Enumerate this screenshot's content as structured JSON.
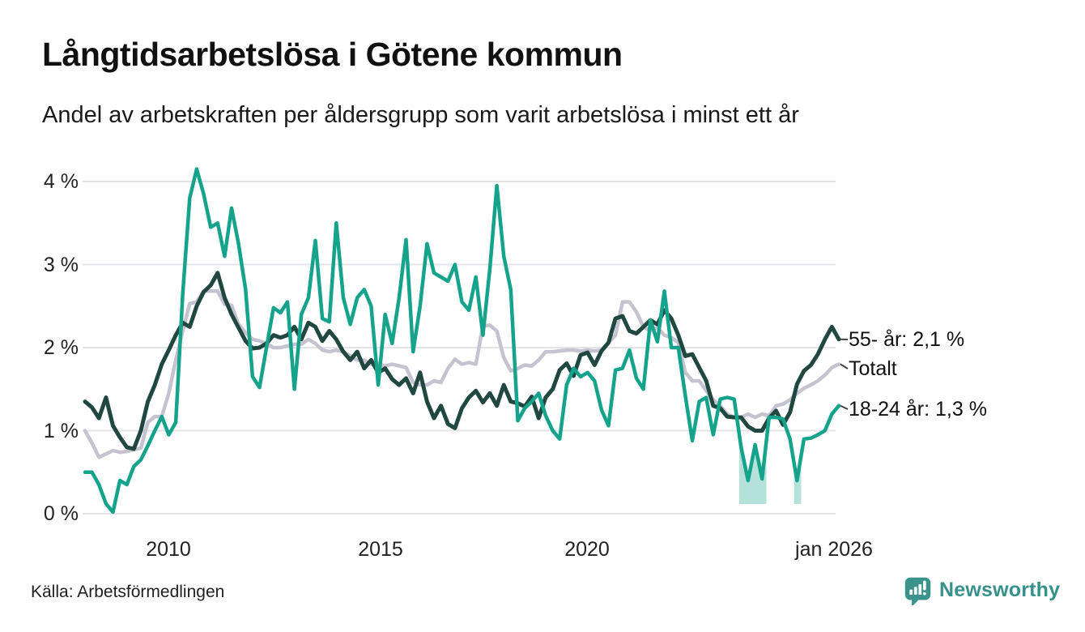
{
  "header": {
    "title": "Långtidsarbetslösa i Götene kommun",
    "subtitle": "Andel av arbetskraften per åldersgrupp som varit arbetslösa i minst ett år"
  },
  "footer": {
    "source": "Källa: Arbetsförmedlingen",
    "brand": "Newsworthy"
  },
  "colors": {
    "teal": "#16a38c",
    "dark": "#214741",
    "gray": "#c6c3d0",
    "band": "#16a38c",
    "grid": "#e4e3e7",
    "connector": "#444444",
    "brand_teal": "#3b938c"
  },
  "chart_data": {
    "type": "line",
    "title": "Långtidsarbetslösa i Götene kommun",
    "subtitle": "Andel av arbetskraften per åldersgrupp som varit arbetslösa i minst ett år",
    "x_range": [
      2008,
      2026
    ],
    "x_step_years": 0.16667,
    "ylim": [
      0,
      4.3
    ],
    "grid": true,
    "y_ticks": [
      "4 %",
      "3 %",
      "2 %",
      "1 %",
      "0 %"
    ],
    "y_tick_values": [
      4,
      3,
      2,
      1,
      0
    ],
    "x_ticks": [
      "2010",
      "2015",
      "2020",
      "jan 2026"
    ],
    "x_tick_years": [
      2010,
      2015,
      2020,
      2026
    ],
    "end_labels": [
      {
        "text": "55- år: 2,1 %",
        "value": 2.1
      },
      {
        "text": "Totalt",
        "value": 1.8
      },
      {
        "text": "18-24 år: 1,3 %",
        "value": 1.3
      }
    ],
    "uncertainty_bands": [
      {
        "from": 2023.62,
        "to": 2024.27
      },
      {
        "from": 2024.93,
        "to": 2025.1
      }
    ],
    "series": [
      {
        "name": "Totalt",
        "color": "#c6c3d0",
        "width": 4.5,
        "values": [
          1.0,
          0.85,
          0.68,
          0.72,
          0.76,
          0.74,
          0.75,
          0.77,
          0.79,
          1.1,
          1.17,
          1.17,
          1.45,
          1.85,
          2.2,
          2.53,
          2.55,
          2.68,
          2.68,
          2.68,
          2.52,
          2.51,
          2.28,
          2.18,
          2.1,
          2.08,
          2.05,
          2.0,
          2.0,
          2.02,
          2.04,
          2.04,
          2.1,
          2.05,
          1.97,
          1.95,
          1.97,
          1.95,
          1.9,
          1.85,
          1.85,
          1.8,
          1.8,
          1.78,
          1.8,
          1.78,
          1.76,
          1.58,
          1.55,
          1.55,
          1.6,
          1.58,
          1.75,
          1.86,
          1.8,
          1.82,
          1.8,
          2.26,
          2.27,
          2.2,
          1.88,
          1.72,
          1.75,
          1.79,
          1.78,
          1.85,
          1.95,
          1.95,
          1.96,
          1.97,
          1.97,
          1.96,
          1.97,
          1.96,
          1.97,
          2.06,
          2.15,
          2.55,
          2.55,
          2.43,
          2.25,
          2.2,
          2.24,
          2.15,
          2.12,
          2.06,
          1.7,
          1.6,
          1.6,
          1.48,
          1.37,
          1.3,
          1.2,
          1.16,
          1.16,
          1.2,
          1.16,
          1.2,
          1.18,
          1.3,
          1.32,
          1.37,
          1.45,
          1.51,
          1.55,
          1.6,
          1.67,
          1.76,
          1.8
        ]
      },
      {
        "name": "55- år",
        "color": "#214741",
        "width": 5,
        "values": [
          1.35,
          1.28,
          1.15,
          1.4,
          1.06,
          0.92,
          0.8,
          0.78,
          1.0,
          1.35,
          1.55,
          1.8,
          1.97,
          2.15,
          2.3,
          2.25,
          2.5,
          2.67,
          2.75,
          2.9,
          2.6,
          2.4,
          2.24,
          2.08,
          1.99,
          2.0,
          2.05,
          2.15,
          2.12,
          2.15,
          2.25,
          2.1,
          2.3,
          2.25,
          2.08,
          2.2,
          2.1,
          1.95,
          1.85,
          1.95,
          1.75,
          1.85,
          1.7,
          1.75,
          1.62,
          1.55,
          1.63,
          1.45,
          1.7,
          1.35,
          1.15,
          1.3,
          1.08,
          1.03,
          1.27,
          1.4,
          1.48,
          1.34,
          1.45,
          1.3,
          1.55,
          1.35,
          1.33,
          1.29,
          1.41,
          1.15,
          1.4,
          1.5,
          1.73,
          1.81,
          1.66,
          1.91,
          1.94,
          1.79,
          1.96,
          2.06,
          2.35,
          2.38,
          2.2,
          2.17,
          2.25,
          2.33,
          2.28,
          2.45,
          2.35,
          2.15,
          1.9,
          1.92,
          1.76,
          1.6,
          1.3,
          1.27,
          1.17,
          1.16,
          1.16,
          1.05,
          1.0,
          1.0,
          1.15,
          1.24,
          1.07,
          1.22,
          1.56,
          1.72,
          1.79,
          1.92,
          2.1,
          2.25,
          2.1
        ]
      },
      {
        "name": "18-24 år",
        "color": "#16a38c",
        "width": 4.5,
        "values": [
          0.5,
          0.5,
          0.35,
          0.12,
          0.02,
          0.4,
          0.35,
          0.57,
          0.65,
          0.82,
          1.0,
          1.17,
          0.95,
          1.1,
          2.65,
          3.8,
          4.15,
          3.85,
          3.45,
          3.5,
          3.1,
          3.68,
          3.25,
          2.7,
          1.65,
          1.52,
          2.0,
          2.48,
          2.42,
          2.55,
          1.5,
          2.4,
          2.6,
          3.29,
          2.35,
          2.31,
          3.5,
          2.6,
          2.28,
          2.6,
          2.7,
          2.5,
          1.55,
          2.4,
          2.05,
          2.6,
          3.3,
          1.95,
          2.5,
          3.25,
          2.9,
          2.85,
          2.8,
          3.0,
          2.55,
          2.45,
          2.85,
          2.15,
          2.95,
          3.95,
          3.1,
          2.7,
          1.12,
          1.27,
          1.35,
          1.45,
          1.18,
          1.0,
          0.9,
          1.55,
          1.75,
          1.65,
          1.7,
          1.6,
          1.25,
          1.06,
          1.73,
          1.75,
          1.97,
          1.63,
          1.5,
          2.33,
          2.07,
          2.68,
          2.0,
          2.0,
          1.42,
          0.88,
          1.35,
          1.4,
          0.95,
          1.38,
          1.4,
          1.38,
          0.8,
          0.4,
          0.83,
          0.42,
          1.16,
          1.16,
          1.14,
          0.9,
          0.4,
          0.9,
          0.91,
          0.95,
          1.0,
          1.2,
          1.3
        ]
      }
    ]
  }
}
